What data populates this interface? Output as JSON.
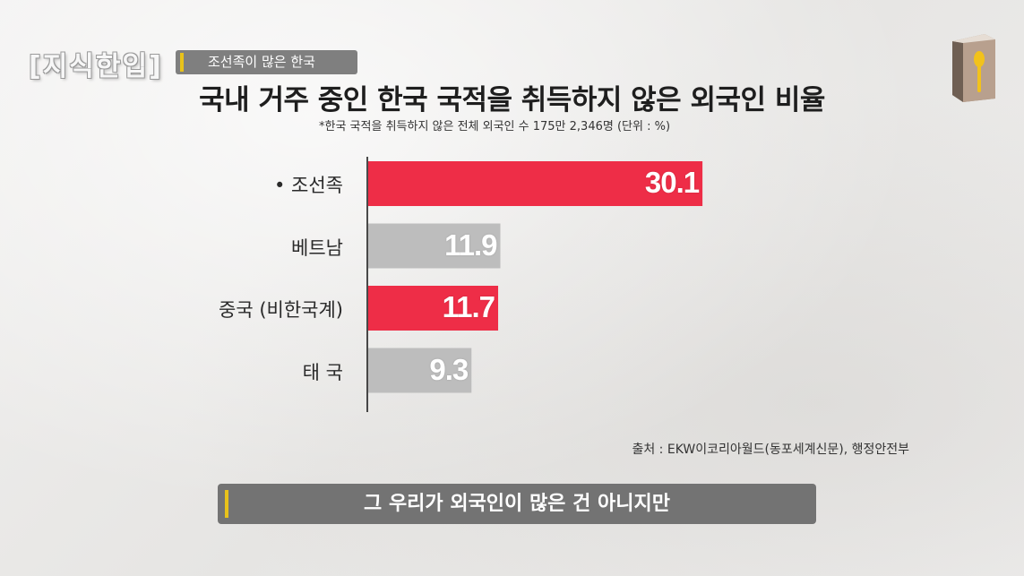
{
  "brand": {
    "logo_text": "[지식한입]"
  },
  "header": {
    "topic_tag": "조선족이 많은 한국",
    "title": "국내 거주 중인 한국 국적을 취득하지 않은 외국인 비율",
    "subtitle": "*한국 국적을 취득하지 않은 전체 외국인 수 175만 2,346명 (단위 : %)"
  },
  "icons": {
    "book": "book-with-spoon-icon"
  },
  "chart_data": {
    "type": "bar",
    "orientation": "horizontal",
    "categories": [
      "• 조선족",
      "베트남",
      "중국 (비한국계)",
      "태 국"
    ],
    "values": [
      30.1,
      11.9,
      11.7,
      9.3
    ],
    "value_labels": [
      "30.1",
      "11.9",
      "11.7",
      "9.3"
    ],
    "colors": [
      "#ee2d47",
      "#bdbdbd",
      "#ee2d47",
      "#bdbdbd"
    ],
    "xlim": [
      0,
      33.4
    ],
    "grid": false,
    "legend": "none"
  },
  "source": "출처 : EKW이코리아월드(동포세계신문), 행정안전부",
  "caption": "그 우리가 외국인이 많은 건 아니지만"
}
